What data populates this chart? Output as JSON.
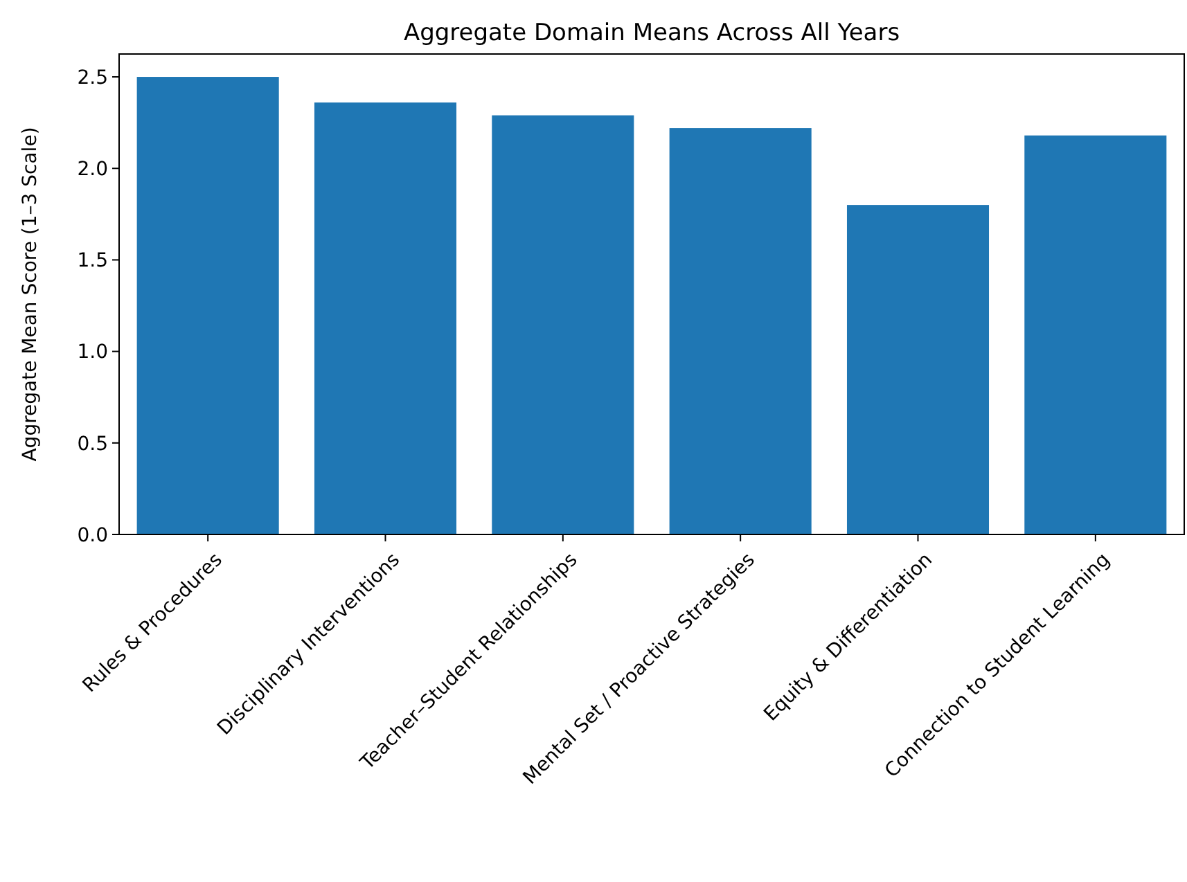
{
  "chart_data": {
    "type": "bar",
    "title": "Aggregate Domain Means Across All Years",
    "ylabel": "Aggregate Mean Score (1–3 Scale)",
    "categories": [
      "Rules & Procedures",
      "Disciplinary Interventions",
      "Teacher–Student Relationships",
      "Mental Set / Proactive Strategies",
      "Equity & Differentiation",
      "Connection to Student Learning"
    ],
    "values": [
      2.5,
      2.36,
      2.29,
      2.22,
      1.8,
      2.18
    ],
    "color": "#1f77b4",
    "ylim": [
      0,
      2.625
    ],
    "yticks": [
      {
        "value": 0,
        "label": "0.0"
      },
      {
        "value": 0.5,
        "label": "0.5"
      },
      {
        "value": 1,
        "label": "1.0"
      },
      {
        "value": 1.5,
        "label": "1.5"
      },
      {
        "value": 2,
        "label": "2.0"
      },
      {
        "value": 2.5,
        "label": "2.5"
      }
    ],
    "grid": false
  }
}
